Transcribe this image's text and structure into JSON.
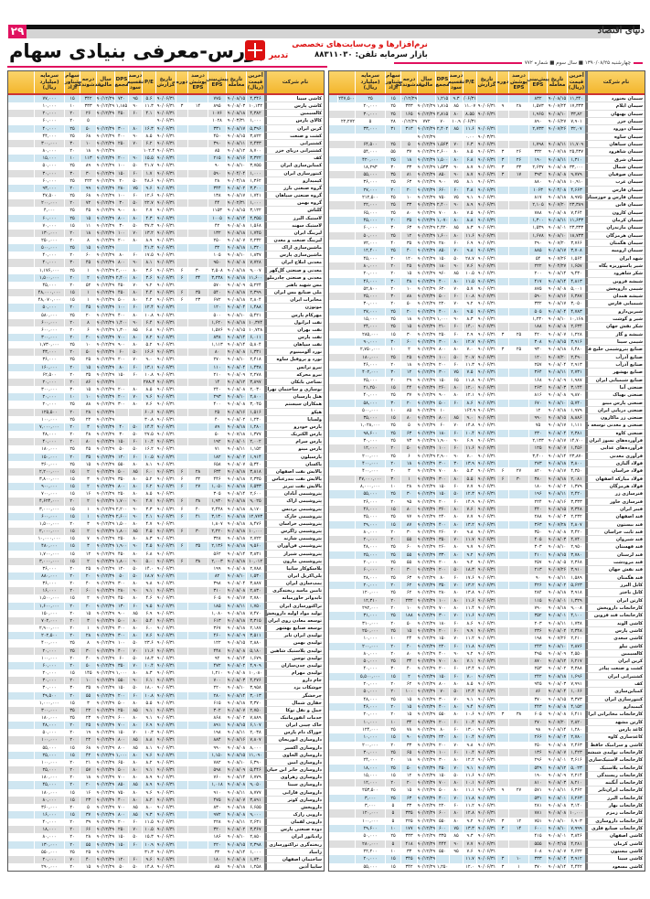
{
  "header": {
    "page_number": "۲۹",
    "logo": "دنیای اقتصاد",
    "title": "بورس-معرفی بنیادی سهام",
    "ad_line1": "نرم‌افزارها و وب‌سایت‌های تخصصی",
    "ad_line2": "بازار سرمایه  تلفن: ۸۸۳۱۱۰۳۰",
    "ad_brand": "تدبیر",
    "dateline": "چهارشنبه ۱۳۹۰/۰۸/۲۵ ■ سال سوم ■ شماره ۷۷۲"
  },
  "colors": {
    "accent": "#e0115f",
    "header_bg": "#f5c33b",
    "row_blue": "#cfe6f1",
    "row_gray": "#dedede"
  },
  "columns": [
    "نام شرکت",
    "آخرین قیمت (ریال)",
    "تاریخ معامله",
    "پیش‌بینی EPS",
    "درصد پوشش EPS",
    "دوره",
    "تاریخ گزارش",
    "P/E",
    "درصد تقسیم سود",
    "DPS مجمع",
    "سال مالی",
    "درجه نقدشوندگی",
    "سهام شناور آزاد",
    "سرمایه (میلیارد ریال)"
  ],
  "right_rows": [
    "سیمان بجنورد|۱۱,۳۴۰|۹۰/۰۸/۱۵|۸۳۲||||۹۰/۰۶/۳۱|۹.۳|۱,۲۱۵||۹۰/۱۲/۲۹|۱۵|۲۵|۲۴۷,۵۰۰",
    "سیمان ایلام|۱۷,۳۳۳|۹۰/۰۷/۲۴|۱,۵۷۳|۲۸|۹|۹۰/۰۶/۳۱|۱۱.۰۷|۸۵|۱,۸۱۵|۹۰/۱۲/۲۹|۳۳۳|۲۵|۲۰,۰۰۰",
    "سیمان بهبهان|۳۳,۸۲|۹۰/۰۸/۱۰|۱,۹۶۵|||۹۰/۰۶/۳۱|۸.۵۵|۸۰|۲,۸۱۵|۹۰/۱۲/۲۹|۱۶۵|۲۵|۳۰,۰۰۰",
    "سیمان خزر|۷,۹۰۱|۹۰/۰۶/۲۷|۸۹۰||||۹۰/۰۶/۳۱|۱۰.۹|۷۰|۷۷۲|۹۰/۱۲/۲۹|۲۸|۵|۲۲,۲۷۲",
    "سیمان دورود|۳۲,۰۷|۹۰/۰۷/۲۶|۲,۷۳۳|||۹۰/۰۶/۳۱|۱۱.۶|۸۵|۲,۴۰۲|۹۰/۱۲/۲۹|۳۱۳|۳۱|۳۳,۰۰۰",
    "سیمان ساوه||||||۹۰/۰۳/۳۱|۰.۰۰|||۹۰/۱۲/۲۹|||",
    "سیمان سپاهان|۱۱,۷۰۹|۹۰/۰۸/۱۱|۱,۷۹۸|||۹۰/۰۶/۳۱|۶.۳|۷۰|۱,۵۶۳|۹۰/۱۲/۲۹|۵|۲۵|۶۴,۵۰۰",
    "سیمان شاهرود|۲۵,۴۳۷|۹۰/۰۷/۱۸|۳۳۲|۲۶|۳|۹۰/۰۶/۳۱|۸.۵|۸۰|۲,۶۰۰|۹۰/۱۲/۲۹|۳۷|۵۵|۵۴,۰۰۰",
    "سیمان شرق|۱,۳۱۰|۹۰/۰۸/۱۱|۱۹۰|۲۶|۳|۹۰/۰۶/۳۱|۶.۸|۸۰|۱,۵۰۰|۹۰/۱۲/۲۹|۱۸|۲۵|۴۲۰,۰۰۰",
    "سیمان شمال|۳۳,۰۰۰|۹۰/۰۸/۰۸|۲,۶۳۷|۳۳|۳|۹۰/۰۶/۳۱|۸.۷|۹۰|۱,۵۳۳|۹۰/۱۲/۲۹|۳۳|۳۰|۱۸,۲۹۳",
    "سیمان صوفیان|۹,۷۷۹|۹۰/۰۸/۰۸|۳۹۳|۱۷|۳|۹۰/۰۶/۳۱|۸.۷|۹۰|۸۵۰|۹۰/۱۲/۲۹|۸۱|۳۵|۵۵,۰۰۰",
    "سیمان غرب|۱۰,۹۱۰|۹۰/۰۸/۱۸|۸۸۰|||۹۰/۰۶/۳۱|۸.۱|۷۵|۹۰۰|۹۰/۱۲/۲۹|۶۳|۲۵|۳۶,۰۰۰",
    "سیمان فارس|۴,۶۶۳|۹۰/۰۴/۰۸|۱۰۶۳|||۹۰/۰۶/۳۱|۴.۸|۶۰|۶۶۰|۹۰/۱۲/۲۹|۲۰|۲۰|۲۷,۰۰۰",
    "سیمان فارس و خوزستان|۸,۹۷۵|۹۰/۰۸/۱۸|۸۱۷|||۹۰/۰۶/۳۱|۹.۱|۷۵|۷۵۰|۹۰/۱۲/۲۹|۱۰|۴۵|۲۱۲,۵۰۰",
    "سیمان قاین|۲۳,۳۸۹|۹۰/۰۷/۲۰|۲,۱۰۵|||۹۰/۰۶/۳۱|۸.۹|۹۰|۲,۴۰۰|۹۰/۱۲/۲۹|۳۳|۲۵|۲۲,۰۰۰",
    "سیمان کارون|۷,۴۶۴|۹۰/۰۸/۰۸|۷۸۸|||۹۰/۰۶/۳۱|۷.۵|۸۰|۷۰۰|۹۰/۱۲/۲۹|۸۰|۲۵|۶۵,۰۰۰",
    "سیمان کرمان|۱۱,۶۳۳|۹۰/۰۸/۱۱|۱,۳۰۰|||۹۰/۰۶/۳۱|۸.۸|۸۰|۱,۰۷۰|۹۰/۱۲/۲۹|۳۵|۲۰|۴۵,۰۰۰",
    "سیمان مازندران|۲۳,۳۳۳|۹۰/۰۸/۰۱|۱,۵۳۹|||۹۰/۰۶/۳۱|۸.۳|۸۵|۲,۴۲۰|۹۰/۱۲/۲۹|۶۳|۳۰|۶۰,۰۰۰",
    "سیمان هرمزگان|۱۸,۷۳۳|۹۰/۰۸/۱۰|۱,۶۷۸|||۹۰/۰۶/۳۱|۱۱.۶|۸۰|۱,۶۰۰|۹۰/۱۲/۲۹|۱۲|۲۵|۵۰,۰۰۰",
    "سیمان هگمتان|۳,۷۶۶|۹۰/۰۷/۲۰|۲۹۰|||۹۰/۰۶/۳۱|۶.۹|۶۰|۲۸۰|۹۰/۱۲/۲۹|۳۵|۴۰|۷۲,۰۰۰",
    "سیمان ارومیه|۳,۷۰۸|۹۰/۰۸/۱۷|۸۸۵|||۹۰/۰۶/۳۱|۹.۸|۷۰|۸۵۰|۹۰/۱۲/۲۹|۴۰|۲۵|۱۲,۴۰۰",
    "شهد ایران|۱,۵۶۴|۹۰/۰۷/۲۶|۵۴|||۹۰/۰۶/۳۱|۲۸.۷|۵۰|۱۵۰|۹۰/۱۲/۲۹|۱۲۰|۲۰|۴۵,۰۰۰",
    "شیر پاستوریزه پگاه|۱,۶۵۷|۹۰/۰۴/۲۷|۲۲۲|||۹۰/۰۶/۳۱|۷.۶|۹۰|۱۸۰|۹۰/۱۲/۲۹|۲۵|۲۰|۸۰,۰۰۰",
    "شکر شاهرود|۹,۴۳۰|۹۰/۰۸/۱۴|۲۰۰|||۹۰/۰۶/۳۱|۱۰.۵|۸۵|۹۶۰|۹۰/۱۲/۲۹|۱۵|۲۰|۲۰,۰۰۰",
    "شیشه قزوین|۴,۸۱۳|۹۰/۰۸/۱۴|۴۱۷|||۹۰/۰۶/۳۱|۱۱.۵|۸۰|۴۰۰|۹۰/۱۲/۲۹|۴۸|۳۰|۴۶,۰۰۰",
    "شیمی داروپخش|۵,۰۰۱|۹۰/۰۸/۰۸|۸۷۵|||۹۰/۰۶/۳۱|۵.۷|۷۰|۶۲۰|۹۰/۱۲/۲۹|۱۰|۲۰|۵۲,۸۰۰",
    "شیشه همدان|۶,۳۸۷|۹۰/۰۸/۱۶|۵۹۰|||۹۰/۰۶/۳۱|۱۰.۸|۶۰|۵۰۰|۹۰/۱۲/۲۹|۸۸|۳۰|۲۵,۰۰۰",
    "شیمیایی فارس|۳,۰۵۰|۹۰/۰۸/۱۷|۳۳۲|||۹۰/۰۶/۳۱|۹.۲|۷۰|۲۲۰|۹۰/۱۲/۲۹|۵۰|۲۰|۳۰,۰۰۰",
    "شیرین‌دارو|۴,۷۸۳|۹۰/۰۸/۰۴|۵۰۵|||۹۰/۰۶/۳۱|۹.۵|۸۰|۴۰۰|۹۰/۱۲/۲۹|۲۰|۲۵|۲۷,۰۰۰",
    "شیر و گوشت|۱۰,۱۶۸|۹۰/۰۸/۱۰|۱,۲۳۰|||۹۰/۰۶/۳۱|۸.۳|۹۰|۱,۰۰۰|۹۰/۱۲/۲۹|۱۸|۲۵|۱۵,۰۰۰",
    "شکر نقش جهان|۲,۶۳۴|۹۰/۰۸/۰۸|۱۸۸|||۹۰/۰۶/۳۱|۱۴.۰|۶۰|۲۱۰|۹۰/۱۲/۲۹|۱۵|۲۵|۲۴,۰۰۰",
    "شیشه و گاز|۱,۲۲۸|۹۰/۰۸/۰۷|۴۲۰|۲۵|۳|۹۰/۰۶/۳۱|۲.۹|۶۰|۲۵۰|۹۰/۱۲/۲۹|۳۰|۱۵|۲۸۵,۰۰۰",
    "شیمی سینا|۳,۹۱۶|۹۰/۰۸/۱۵|۳۰۸|||۹۰/۰۶/۳۱|۱۲.۷|۸۰|۳۰۰|۹۰/۱۲/۲۹|۶۰|۳۰|۹۰,۰۰۰",
    "صنایع پتروشیمی خلیج فارس|۶,۴۸۰|۹۰/۰۸/۱۸|۹۳۰|۲۵|۳|۹۰/۰۶/۳۱|۷.۰|۸۰|۸۰۰|۹۰/۱۲/۲۹|۲|۱۰|۲,۷۵۰,۰۰۰",
    "صنایع آذرآب|۲,۴۹۰|۹۰/۰۷/۲۰|۱۲۰|||۹۰/۰۶/۳۱|۲۰.۷|۵۰|۱۰۰|۹۰/۱۲/۲۹|۲۵|۲۵|۱۸۰,۰۰۰",
    "صنایع آذرآب|۲,۹۱۳|۹۰/۰۸/۰۴|۲۵۷|||۹۰/۰۶/۳۱|۱۱.۳|۶۰|۲۰۰|۹۰/۱۲/۲۹|۱۸|۲۰|۴۶,۰۰۰",
    "صنایع بهشهر|۲,۷۳۱|۹۰/۰۸/۱۱|۳۶۴|||۹۰/۰۶/۳۱|۷.۵|۷۵|۳۰۰|۹۰/۱۲/۲۹|۱۲|۳۰|۴۰۲,۰۰۰",
    "صنایع شیمیایی ایران|۱,۹۸۷|۹۰/۰۸/۰۹|۱۶۸|||۹۰/۰۶/۳۱|۱۱.۸|۶۵|۱۵۰|۹۰/۱۲/۲۹|۲۹|۲۰|۲۵,۰۰۰",
    "صنعتی آما|۳,۱۴۴|۹۰/۰۸/۰۳|۲۶۳|||۹۰/۰۶/۳۱|۱۲.۰|۸۰|۲۶۰|۹۰/۱۲/۲۹|۴۴|۱۵|۲۱,۲۵۰",
    "صنعتی بهپاک|۹,۸۷۰|۹۰/۰۸/۰۸|۸۱۶|||۹۰/۰۶/۳۱|۱۲.۱|۸۰|۹۰۰|۹۰/۱۲/۲۹|۳۷|۲۵|۴۰,۰۰۰",
    "صنعتی پارس مینو|۵,۷۴۰|۹۰/۰۸/۱۰|۶۷۰|||۹۰/۰۶/۳۱|۸.۶|۶۰|۵۰۰|۹۰/۱۲/۲۹|۲۰|۳۰|۵۸,۰۰۰",
    "صنعتی دریایی ایران|۱,۹۷۹|۹۰/۰۷/۱۸|۱۲|||۹۰/۰۶/۳۱|۱۶۴.۹||۱۰|۹۰/۱۲/۲۹|۸۵|۱۰|۵۰۰,۰۰۰",
    "صنعتی زر ماکارون|۸,۸۸۶|۹۰/۰۸/۱۵|۹۹۰|||۹۰/۰۶/۳۱|۹.۰|۸۵|۸۰۰|۹۰/۱۲/۲۹|۸۰|۱۵|۳۵,۰۰۰",
    "صنعتی و معدنی توسعه ملی|۱,۱۱۱|۹۰/۰۸/۱۷|۷۵|||۹۰/۰۶/۳۱|۱۴.۸|۷۰|۶۰|۹۰/۱۲/۲۹|۵|۲۵|۱,۰۲۸,۰۰۰",
    "صنعتی کاوه|۲,۳۸۱|۹۰/۰۸/۰۴|۲۳۰|||۹۰/۰۶/۳۱|۱۰.۴|۶۰|۱۸۰|۹۰/۱۲/۲۹|۶۳|۲۵|۹۸,۶۰۰",
    "فرآورده‌های نسوز ایران|۱۴,۷۰۰|۹۰/۰۸/۱۷|۲,۱۳۳|||۹۰/۰۶/۳۱|۶.۹|۹۰|۱,۹۰۰|۹۰/۱۲/۲۹|۷۳|۲۵|۳۰,۰۰۰",
    "فرآورده‌های غذایی|۱,۴۵۶|۹۰/۰۸/۰۷|۱۲۵|||۹۰/۰۶/۳۱|۱۱.۶|۶۰|۱۰۰|۹۰/۱۲/۲۹|۵۰|۲۰|۱۲,۰۰۰",
    "فرآوری معدنی|۲۳,۸۷۰|۹۰/۰۸/۱۴|۳,۴۰۰|||۹۰/۰۶/۳۱|۷.۰|۹۰|۲,۹۰۰|۹۰/۱۲/۲۹|۶|۲۵|۲۰۰,۰۰۰",
    "فولاد آلیاژی|۳,۸۰۰|۹۰/۰۸/۱۸|۲۷۳|||۹۰/۰۶/۳۱|۱۳.۹|۳۰|۳۰۰|۹۰/۱۲/۲۹|۱۸|۲۰|۴۰۰,۰۰۰",
    "فولاد خراسان|۴,۳۵۰|۹۰/۰۸/۱۷|۸۲۰|۲۷|۶|۹۰/۰۶/۳۱|۵.۳|۸۰|۷۰۰|۹۰/۱۲/۲۹|۳|۲۰|۴۰۰,۰۰۰",
    "فولاد مبارکه اصفهان|۲,۰۸۱|۹۰/۰۸/۱۸|۳۸۰|۳۰|۶|۹۰/۰۶/۳۱|۵.۵|۸۰|۳۰۰|۹۰/۱۲/۲۹|۱|۳۰|۴۷,۰۰۰,۰۰۰",
    "فولاد هرمزگان|۱,۳۷۹|۹۰/۰۸/۰۲|۱۸۰|||۹۰/۰۶/۳۱|۷.۷|۶۰|۱۵۰|۹۰/۱۲/۲۹|۲۸|۱۰|۸,۰۰۰,۰۰۰",
    "فنرسازی زر|۲,۴۲۰|۹۰/۰۸/۱۱|۱۹۶|||۹۰/۰۶/۳۱|۱۲.۳|۵۰|۱۵۰|۹۰/۱۲/۲۹|۳۰|۲۵|۵۵,۰۰۰",
    "فنرسازی خاور|۳,۳۳۳|۹۰/۰۸/۱۶|۲۲۴|||۹۰/۰۶/۳۱|۱۴.۹|۶۰|۲۰۰|۹۰/۱۲/۲۹|۹۵|۲۰|۲۶,۰۰۰",
    "فیبر ایران|۳,۳۴۸|۹۰/۰۸/۱۵|۴۴۰|||۹۰/۰۶/۳۱|۷.۶|۸۰|۳۶۰|۹۰/۱۲/۲۹|۸۰|۱۵|۴۶,۰۰۰",
    "قند اصفهان|۲,۲۳۲|۹۰/۰۸/۰۳|۲۸۸|||۹۰/۰۶/۳۱|۷.۷|۸۰|۲۴۰|۹۰/۱۲/۲۹|۷۷|۲۵|۲۵,۰۰۰",
    "قند بیستون|۴,۸۰۷|۹۰/۰۷/۲۸|۳۶۳|||۹۰/۰۶/۳۱|۱۳.۲|۸۰|۴۰۰|۹۰/۱۲/۲۹|۸۷|۱۵|۲۹,۰۰۰",
    "قند ثابت خراسان|۳,۴۲۰|۹۰/۰۸/۰۸|۳۵۰|||۹۰/۰۶/۳۱|۹.۸|۷۰|۲۶۰|۹۰/۱۲/۲۹|۳۰|۲۰|۸۰,۰۰۰",
    "قند شیروان|۴,۷۴۰|۹۰/۰۸/۰۳|۴۰۵|||۹۰/۰۶/۳۱|۱۱.۷|۷۰|۳۵۰|۹۰/۱۲/۲۹|۵۵|۲۰|۲۰,۰۰۰",
    "قند قهستان|۲,۹۵۰|۹۰/۰۸/۱۰|۳۰۳|||۹۰/۰۶/۳۱|۹.۷|۸۰|۲۶۰|۹۰/۱۲/۲۹|۶۰|۲۵|۴۸,۰۰۰",
    "قند لرستان|۳,۷۸۰|۹۰/۰۸/۱۵|۴۱۰|||۹۰/۰۶/۳۱|۹.۲|۸۰|۳۳۰|۹۰/۱۲/۲۹|۵۵|۲۵|۲۵,۰۰۰",
    "قند مرودشت|۲,۳۶۸|۹۰/۰۸/۰۵|۲۵۷|||۹۰/۰۶/۳۱|۹.۲|۸۰|۲۰۰|۹۰/۱۲/۲۹|۵۵|۲۵|۲۰,۰۰۰",
    "قند نقش جهان|۳,۹۱۰|۹۰/۰۷/۲۶|۲۱۳|||۹۰/۰۶/۳۱|۱۸.۳|۵۰|۲۰۰|۹۰/۱۲/۲۹|۳۰|۲۰|۶۰,۰۰۰",
    "قند هگمتان|۱,۵۸۹|۹۰/۰۸/۱۱|۹۰|||۹۰/۰۶/۳۱|۱۷.۶|۶۰|۸۰|۹۰/۱۲/۲۹|۶۳|۲۵|۲۸,۰۰۰",
    "کابل البرز|۵,۶۲۳|۹۰/۰۸/۰۲|۴۲۶|||۹۰/۰۶/۳۱|۱۳.۲|۷۰|۳۵۰|۹۰/۱۲/۲۹|۶۲|۲۰|۲۰,۰۰۰",
    "کابل باختر|۳,۹۱۸|۹۰/۰۸/۱۸|۲۸۴|||۹۰/۰۶/۳۱|۱۳.۸|۸۰|۲۸۰|۹۰/۱۲/۲۹|۶۲|۲۵|۱۲۰,۰۰۰",
    "کارتن ایران|۱,۳۲۹|۹۰/۰۸/۰۱|۱۱۵|||۹۰/۰۶/۳۱|۱۱.۶|۸۰|۱۰۰|۹۰/۱۲/۲۹|۲۳۲|۲۰|۱۲,۳۱۰",
    "کارخانجات داروپخش|۹,۰۰۸|۹۰/۰۸/۱۸|۷۹۰|||۹۰/۰۶/۳۱|۱۱.۴|۸۰|۷۰۰|۹۰/۱۲/۲۹|۱۰|۲۰|۲۹۲,۰۰۰",
    "کارخانجات قند قزوین|۴,۱۰۰|۹۰/۰۸/۰۱|۳۵۲|||۹۰/۰۶/۳۱|۱۱.۶|۷۰|۳۰۰|۹۰/۱۲/۲۹|۱۸۸|۲۵|۳۱,۰۰۰",
    "کاشی الوند|۱,۷۳۸|۹۰/۰۸/۱۱|۲۰۳|||۹۰/۰۶/۳۱|۸.۶|۶۰|۱۸۰|۹۰/۱۲/۲۹|۵۰|۲۰|۳۱۰,۰۰۰",
    "کاشی پارس|۲,۳۴۸|۹۰/۰۸/۰۲|۲۳۶|||۹۰/۰۶/۳۱|۹.۹|۶۰|۲۰۰|۹۰/۱۲/۲۹|۱۵|۲۵|۲۵۰,۰۰۰",
    "کاشی سعدی|۲,۲۱۰|۹۰/۰۷/۲۶|۱۹۸|||۹۰/۰۶/۳۱|۱۱.۲|۷۰|۱۵۰|۹۰/۱۲/۲۹|۲۴|۱۰|۱۰,۰۰۰",
    "کاشی نیلو|۲,۸۷۶|۹۰/۰۸/۱۰|۲۴۳|||۹۰/۰۶/۳۱|۱۱.۸|۶۰|۲۲۰|۹۰/۱۲/۲۹|۴۰|۲۰|۲۰۰,۰۰۰",
    "کالسیمین|۴,۵۵۰|۹۰/۰۸/۰۹|۴۹۵|||۹۰/۰۶/۳۱|۹.۲|۹۰|۴۰۰|۹۰/۱۲/۲۹|۸۰|۲۰|۸۰,۰۰۰",
    "کربن ایران|۶,۲۱۷|۹۰/۰۸/۱۲|۸۷۰|||۹۰/۰۶/۳۱|۷.۱|۸۰|۷۰۰|۹۰/۱۲/۲۹|۳۴|۲۵|۵۰,۰۰۰",
    "کشت و صنعت پیاذر|۳,۳۸۸|۹۰/۰۸/۰۲|۲۵۳|||۹۰/۰۶/۳۱|۱۳.۴|۶۰|۲۰۰|۹۰/۱۲/۲۹|۴۰|۳۰|۴۰,۰۰۰",
    "کشتیرانی ایران|۱,۶۹۶|۹۰/۰۸/۱۸|۲۴۲|||۹۰/۰۶/۳۱|۷.۰|۶۰|۱۵۰|۹۰/۱۲/۲۹|۲|۱۵|۵,۵۰۰,۰۰۰",
    "کف|۷,۹۹۱|۹۰/۰۸/۰۳|۹۴۵|||۹۰/۰۶/۳۱|۸.۵|۸۰|۸۰۰|۹۰/۱۲/۲۹|۶۲|۲۰|۲۰,۰۰۰",
    "کمباین‌سازی|۱,۰۶۶|۹۰/۰۸/۰۴|۸۶|||۹۰/۰۶/۳۱|۱۲.۴|۵۰|۷۰|۹۰/۱۲/۲۹|۱۰۰|۲۰|۵۰,۰۰۰",
    "کنتورسازی ایران|۳,۳۷۳|۹۰/۰۸/۱۵|۳۷۰|||۹۰/۰۶/۳۱|۹.۱|۷۰|۳۰۰|۹۰/۱۲/۲۹|۱۵|۲۵|۴۸,۰۰۰",
    "کیمیدارو|۴,۱۵۲|۹۰/۰۸/۰۸|۴۴۳|||۹۰/۰۶/۳۱|۹.۴|۸۰|۴۰۰|۹۰/۱۲/۲۹|۱۵|۲۰|۴۶,۰۰۰",
    "کارخانجات مخابراتی ایران|۶,۴۱۱|۹۰/۰۸/۰۸|۶۰۵|۳۸|۳|۹۰/۰۶/۳۱|۱۰.۶|۸۰|۵۵۰|۹۰/۱۲/۲۹|۱۵|۲۰|۲۰,۰۰۰",
    "کارتن مشهد|۲,۸۲۰|۹۰/۰۷/۲۰|۲۷۰|||۹۰/۰۶/۳۱|۱۰.۴|۶۰|۲۰۰|۹۰/۱۲/۲۹|۳۴|۱۰|۱۰,۰۰۰",
    "کاغذ پارس|۱,۲۸۰|۹۰/۰۸/۱۴|۹۸|||۹۰/۰۶/۳۱|۱۳.۰|۶۰|۸۰|۹۰/۱۲/۲۹|۷۸|۲۵|۱۲۴,۰۰۰",
    "کاغذسازی کاوه|۲,۷۸۰|۹۰/۰۸/۰۲|۲۶۶|||۹۰/۰۶/۳۱|۱۰.۴|۸۰|۲۲۰|۹۰/۱۲/۲۹|۹۰|۱۵|۱۰,۰۰۰",
    "کاشی و سرامیک حافظ|۲,۴۶۳|۹۰/۰۸/۰۸|۲۵۰|||۹۰/۰۶/۳۱|۹.۸|۷۰|۲۰۰|۹۰/۱۲/۲۹|۳۳|۲۰|۲۰۰,۰۰۰",
    "کارخانجات تولیدی شیشه|۱,۴۲۳|۹۰/۰۸/۰۷|۱۳۶|||۹۰/۰۶/۳۱|۱۰.۴|۶۰|۱۰۰|۹۰/۱۲/۲۹|۶۵|۲۵|۳۰,۰۰۰",
    "کارخانجات لاستیک‌سازی|۳,۶۱۶|۹۰/۰۸/۰۱|۲۹۶|||۹۰/۰۶/۳۱|۱۲.۲|۸۰|۳۰۰|۹۰/۱۲/۲۹|۱۸|۲۰|۲۴,۰۰۰",
    "کارخانجات پلاستیک|۵,۰۲۳|۹۰/۰۸/۱۲|۵۴۹|||۹۰/۰۶/۳۱|۹.۱|۷۰|۴۵۰|۹۰/۱۲/۲۹|۵۰|۲۵|۱۸,۰۰۰",
    "کارخانجات ریسندگی|۲,۲۱۴|۹۰/۰۸/۰۹|۱۹۰|||۹۰/۰۶/۳۱|۱۱.۶|۵۰|۱۵۰|۹۰/۱۲/۲۹|۱۲|۱۵|۱۵,۰۰۰",
    "کارخانجات آبگینه|۸,۲۱۰|۹۰/۰۸/۰۳|۸۱۰|||۹۰/۰۶/۳۱|۱۰.۱|۸۰|۷۰۰|۹۰/۱۲/۲۹|۲۰|۲۰|۱۲,۰۰۰",
    "کارخانجات ایران‌تایر|۶,۳۶۲|۹۰/۰۸/۱۱|۵۷۱|۲۷|۹|۹۰/۰۶/۳۱|۱۱.۱|۸۰|۵۰۰|۹۰/۱۲/۲۹|۱۵|۲۵|۲۵۳,۵۰۰",
    "کارخانجات البرز|۶,۲۶۳|۹۰/۰۸/۰۱|۵۳۱|||۹۰/۰۶/۳۱|۱۱.۸|۷۰|۴۰۰|۹۰/۱۲/۲۹|۶۳|۲۵|۳,۰۰۰",
    "کارخانجات بهار|۳,۱۴۰|۹۰/۰۸/۰۸|۲۸۱|||۹۰/۰۶/۳۱|۱۱.۲|۶۰|۲۲۰|۹۰/۱۲/۲۹|۳۳|۵|۳,۰۰۰",
    "کارخانجات زمزم|۱۰,۰۰۰|۹۰/۰۸/۰۸|۷۸۱|||۹۰/۰۶/۳۱|۱۲.۸|۸۰|۶۰۰|۹۰/۱۲/۲۹|۳۳۵|۵|۱۲۰,۰۰۰",
    "کارخانجات داروسازی|۶,۹۰۳|۹۰/۰۸/۱۰|۷۵۱|۱۲|۳|۹۰/۰۶/۳۱|۹.۲|۸۰|۵۵۰|۹۰/۱۲/۲۹|۲۲۵|۵|۱۰۰,۰۰۰",
    "کارخانجات صنایع فلزی|۷,۹۹۹|۹۰/۰۸/۱۰|۶۰۰|۱۴|۳|۹۰/۰۶/۳۱|۱۳.۳|۷۵|۶۰۰|۹۰/۱۲/۲۹|۱۷۷|۱۰|۲۹,۶۰۰",
    "کاشی اصفهان|۳,۸۴۶|۹۰/۰۸/۰۱|۴۱۵|||۹۰/۰۶/۳۱|۹.۳|۸۵|۳۳۵|۹۰/۱۲/۲۹|۳۳۳|۲۵|۵۰,۰۰۰",
    "کاشی کرمان|۴,۲۸۱|۹۰/۰۳/۱۵|۵۵۵|||۹۰/۰۶/۳۱|۷.۷|۹۰|۴۴۴|۹۰/۱۲/۲۹|۴۱۸|۵|۲۸۰,۰۰۰",
    "کاشی بیستون|۴,۶۲۲|۹۰/۰۸/۰۷|۶۰۸|||۹۰/۰۶/۳۱|۷.۶|۹۵|۵۵۰|۹۰/۱۲/۲۹|۳۳|۱۰|۲۲,۲۰۰",
    "کاشی سینا|۳,۹۱۲|۹۰/۰۸/۰۴|۳۳۳|۱۰|۳|۹۰/۰۶/۳۱|۱۱.۷|||۹۰/۱۲/۲۹|۳۴۵|۱۵|۲۰,۰۰۰",
    "کاشی مسعود|۴,۴۴۲|۹۰/۰۸/۱۴|۳۷۰|۱|۳|۹۰/۰۶/۳۱|۱۲.۰||۱,۲۵۰|۹۰/۱۲/۲۹|۳۴۲|۱۵|۵۵,۰۰۰"
  ],
  "left_rows": [
    "کاشی سینا|۴,۳۴۶|۹۰/۰۸/۱۵|۷۷۵|||۹۰/۰۶/۳۱|۵.۶|۹۵|۷۲۰|۹۰/۱۲/۲۹|۳۴۲|۱۵|۷۷,۰۰۰",
    "کاشی پارس|۱۰,۱۳۲|۹۰/۰۸/۰۳|۸۹۵|۱۴|۳|۹۰/۰۶/۳۱|۱۱.۳|۹۰|۱,۱۸۵|۹۰/۱۲/۲۹|۳۳۳|۱۰|۱۰,۰۰۰",
    "کالسیمین|۴,۳۸۲|۹۰/۰۸/۱۸|۱۰۷۶|||۹۰/۰۶/۳۱|۴.۱|۶۰|۴۵۰|۹۰/۱۲/۲۹|۲۶|۲۰|۲۰,۰۰۰",
    "کالای پارس|۱,۰۰۰|۹۰/۰۳/۳۱|۱۰۲۸|||۹۰/۰۶/۳۱|||||۵|۲۰|۶۰,۰۰۰",
    "کربن ایران|۵,۳۹۶|۹۰/۰۸/۱۷|۳۳۱|||۹۰/۰۶/۳۱|۱۶.۳|۸۰|۳۰۰|۹۰/۱۲/۲۹|۵۰|۲۵|۴۰,۰۰۰",
    "کشت و صنعت|۳,۸۲۲|۹۰/۰۸/۱۵|۴۵۰|||۹۰/۰۶/۳۱|۸.۵|۹۰|۴۰۰|۹۰/۱۲/۲۹|۶۸|۲۵|۴۴,۰۰۰",
    "کشتیرانی|۲,۴۳۳|۹۰/۰۸/۱۱|۳۹۰|||۹۰/۰۶/۳۱|۶.۲|۷۰|۲۵۰|۹۰/۱۲/۲۹|۱۰|۳۰|۳۰۰,۰۰۰",
    "کشتیرانی دریای خزر|۸,۷۰۰|۹۰/۰۸/۱۲|۸۵|||۹۰/۰۶/۳۱|۱۰۲.۴|||۹۰/۱۲/۲۹|۱۸|۲۰|۸۰,۰۰۰",
    "کف|۳,۳۲۲|۹۰/۰۸/۱۶|۲۱۵|||۹۰/۰۶/۳۱|۱۵.۵|۹۰|۲۰۰|۹۰/۱۲/۲۹|۱۱۳|۱۰|۱۵,۰۰۰",
    "کمباین‌سازی ایران|۳,۷۵۵|۹۰/۰۸/۱۰|۹۰|||۹۰/۰۶/۳۱|۴۱.۷|۵۰|۱۰۰|۹۰/۱۲/۲۹|۸۹|۲۵|۵۰,۰۰۰",
    "کنتورسازی ایران|۱,۰۰۰|۹۰/۰۴/۰۴|۵۹۰|||۹۰/۰۶/۳۱|۱.۷|۶۰|۱۵۰|۹۰/۱۲/۲۹|۳۰|۳۰|۳۰,۰۰۰",
    "کیمیدارو|۱,۳۶۲|۹۰/۰۳/۱۸|۲۸|||۹۰/۰۶/۳۱|۴۸.۶|۵۰|۲۰|۹۰/۱۲/۲۹|۲۲۲|۲۵|۶۰,۰۰۰",
    "گروه صنعتی بارز|۳,۳۰۰|۹۰/۰۸/۰۲|۳۴۴|||۹۰/۰۶/۳۱|۹.۶|۷۵|۲۸۰|۹۰/۱۲/۲۹|۹۹|۲۰|۹۳,۰۰۰",
    "گروه صنعتی سپاهان|۱,۷۴۱|۹۰/۰۸/۱۷|۱۳۸|||۹۰/۰۶/۳۱|۱۲.۶|۶۰|۱۰۰|۹۰/۱۲/۲۹|۶۸|۲۵|۴۷,۵۰۰",
    "گروه بهمن|۱,۰۰۰|۹۰/۰۲/۳۱|۴۴|||۹۰/۰۶/۳۱|۲۲.۷|۵۰|۳۰|۹۰/۱۲/۲۹|۷۲|۲۰|۲۰۰,۰۰۰",
    "گلتاش|۳,۱۲۲|۹۰/۰۸/۱۵|۱۱۵۳|||۹۰/۰۶/۳۱|۲.۷|۸۰|۹۰۰|۹۰/۱۲/۲۹|۴۵|۲۵|۴,۰۰۰",
    "لاستیک البرز|۴,۳۵۵|۹۰/۰۸/۱۴|۱۰۰۵|||۹۰/۰۶/۳۱|۴.۳|۸۰|۸۰۰|۹۰/۱۲/۲۹|۱۵|۲۵|۶۰,۰۰۰",
    "لاستیک سهند|۱,۵۶۸|۹۰/۰۸/۰۸|۴۲|||۹۰/۰۶/۳۱|۳۷.۳|۵۰|۳۰|۹۰/۱۲/۲۹|۱۱|۱۵|۷۰,۰۰۰",
    "لیزینگ ایران|۱,۷۴۵|۹۰/۰۸/۱۸|۱۳۲|||۹۰/۰۶/۳۱|۱۳.۲|۷۰|۱۰۰|۹۰/۱۲/۲۹|۱۸|۲۰|۱۳۰,۰۰۰",
    "لیزینگ صنعت و معدن|۲,۲۳۲|۹۰/۰۸/۰۷|۲۵۰|||۹۰/۰۶/۳۱|۸.۹|۸۰|۲۰۰|۹۰/۱۲/۲۹|۸|۲۰|۲۵۰,۰۰۰",
    "ماشین‌سازی اراک|۱,۳۲۰|۹۰/۰۸/۱۸|۳۲|||۹۰/۰۶/۳۱|۴۱.۳|||۹۰/۱۲/۲۹|۱۵|۲۵|۵۰۰,۰۰۰",
    "ماشین‌سازی پارس|۱,۸۳۷|۹۰/۰۸/۱۰|۱۰۵|||۹۰/۰۶/۳۱|۱۷.۵|۶۰|۸۰|۹۰/۱۲/۲۹|۶۰|۲۰|۴۰,۰۰۰",
    "معدنی املاح ایران|۷,۷۲۸|۹۰/۰۸/۰۸|۹۵۰|||۹۰/۰۶/۳۱|۸.۱|۹۰|۸۰۰|۹۰/۱۲/۲۹|۴۵|۳۰|۴۰,۰۰۰",
    "معدنی و صنعتی گل‌گهر|۹,۰۰۷|۹۰/۰۸/۱۸|۲,۵۰۸|۳۰|۶|۹۰/۰۶/۳۱|۳.۶|۸۰|۲,۰۰۰|۹۰/۱۲/۲۹|۱|۲۵|۱,۱۷۶,۰۰۰",
    "معدنی و صنعتی چادرملو|۱۱,۶۰۰|۹۰/۰۸/۱۸|۳,۲۳۸|۳۴|۶|۹۰/۰۶/۳۱|۳.۶|۸۰|۲,۴۰۰|۹۰/۱۲/۲۹|۲|۲۰|۱,۵۰۰,۰۰۰",
    "مس شهید باهنر|۵,۲۲۴|۹۰/۰۸/۰۹|۵۷۰|||۹۰/۰۶/۳۱|۹.۲|۷۰|۴۵۰|۹۰/۱۲/۲۹|۵۲|۲۰|۴۵,۰۰۰",
    "ملی صنایع مس ایران|۲,۳۹۹|۹۰/۰۸/۱۸|۵۴۰|۳۵|۶|۹۰/۰۶/۳۱|۴.۴|۸۰|۴۵۰|۹۰/۱۲/۲۹|۱|۱۵|۴۸,۰۰۰,۰۰۰",
    "مخابرات ایران|۲,۸۰۴|۹۰/۰۸/۱۸|۶۷۲|۲۳|۶|۹۰/۰۶/۳۱|۴.۲|۸۰|۵۰۰|۹۰/۱۲/۲۹|۱|۱۵|۴۸,۰۷۰,۰۰۰",
    "موتوژن|۱,۴۸۸|۹۰/۰۸/۰۴|۱۲۰|||۹۰/۰۶/۳۱|۱۲.۴|۶۰|۱۰۰|۹۰/۱۲/۲۹|۴۵|۲۰|۵۰,۰۰۰",
    "مهرکام پارس|۵,۴۲۱|۹۰/۰۸/۱۰|۵۰۰|||۹۰/۰۶/۳۱|۱۰.۸|۸۰|۴۰۰|۹۰/۱۲/۲۹|۲۰|۲۵|۵۸۰,۰۰۰",
    "نفت ایرانول|۱۰,۳۷۴|۹۰/۰۸/۱۸|۱,۶۲۰|||۹۰/۰۶/۳۱|۶.۴|۹۰|۱,۴۰۰|۹۰/۱۲/۲۹|۸|۲۰|۶۰۰,۰۰۰",
    "نفت بهران|۱۰,۷۲۸|۹۰/۰۸/۱۵|۱,۵۷۶|||۹۰/۰۶/۳۱|۶.۸|۸۵|۱,۳۰۰|۹۰/۱۲/۲۹|۶|۲۰|۶۰۰,۰۰۰",
    "نفت پارس|۶,۰۱۱|۹۰/۰۸/۱۴|۸۳۸|||۹۰/۰۶/۳۱|۷.۲|۸۰|۷۰۰|۹۰/۱۲/۲۹|۲۰|۲۰|۳۰۰,۰۰۰",
    "نفت سپاهان|۵,۸۰۴|۹۰/۰۸/۱۴|۱,۱۱۳|||۹۰/۰۶/۳۱|۵.۲|۸۰|۹۰۰|۹۰/۱۲/۲۹|۱۰|۲۵|۱,۷۳۰,۰۰۰",
    "نورد آلومینیوم|۱,۳۳۱|۹۰/۰۸/۰۸|۸۰|||۹۰/۰۶/۳۱|۱۶.۶|۵۰|۶۰|۹۰/۱۲/۲۹|۵۰|۲۰|۴۳,۰۰۰",
    "نورد و پروفیل ساوه|۲,۴۱۸|۹۰/۰۸/۱۰|۲۷۰|||۹۰/۰۶/۳۱|۹.۰|۷۰|۲۰۰|۹۰/۱۲/۲۹|۲۵|۲۵|۳۶,۰۰۰",
    "نیرو ترانس|۱,۴۳۸|۹۰/۰۸/۰۴|۱۱۰|||۹۰/۰۶/۳۱|۱۳.۱|۶۰|۸۰|۹۰/۱۲/۲۹|۱۵|۲۰|۱۶۰,۰۰۰",
    "نیرو محرکه|۲,۲۷۸|۹۰/۰۸/۰۹|۲۱۰|||۹۰/۰۶/۳۱|۱۰.۸|۶۰|۱۵۰|۹۰/۱۲/۲۹|۳۵|۲۰|۶۲,۵۰۰",
    "نساجی بابکان|۳,۸۹۷|۹۰/۰۸/۱۲|۱۴|||۹۰/۰۶/۳۱|۲۷۸.۴|||۹۰/۱۲/۲۹|۸۶|۲۰|۲۰,۰۰۰",
    "نوسازی و ساختمان تهران|۲,۰۳۰|۹۰/۰۸/۰۸|۲۴۰|||۹۰/۰۶/۳۱|۸.۵|۸۰|۲۰۰|۹۰/۱۲/۲۹|۱۵|۳۰|۳۰۰,۰۰۰",
    "هتل پارسیان|۲,۸۰۰|۹۰/۰۸/۱۰|۲۹۳|||۹۰/۰۶/۳۱|۹.۶|۷۰|۲۰۰|۹۰/۱۲/۲۹|۱۰|۱۰|۲۰,۰۰۰",
    "همکاران سیستم|۳,۰۴۵|۹۰/۰۸/۰۸|۴۰۰|||۹۰/۰۶/۳۱|۷.۶|۸۰|۳۰۰|۹۰/۱۲/۲۹|۸۸|۲۵|۲۰,۰۰۰",
    "هپکو|۱,۵۱۶|۹۰/۰۸/۱۶|۲۵|||۹۰/۰۶/۳۱|۶۰.۶|||۹۰/۱۲/۲۹|۲۸|۲۰|۱۲۵,۵۰۰",
    "ولساپا|۱,۲۳۰|۹۰/۰۸/۰۲|۴۰|||۹۰/۰۶/۳۱|۳۰.۸|||۹۰/۱۲/۲۹|۲۲|۲۵|۱۰۰,۰۰۰",
    "پارس خودرو|۱,۲۸۰|۹۰/۰۸/۱۸|۸۹|||۹۰/۰۶/۳۱|۱۴.۴|۵۰|۴۰|۹۰/۱۲/۲۹|۳|۲۰|۷,۰۰۰,۰۰۰",
    "پارس الکتریک|۱,۳۷۷|۹۰/۰۷/۱۸|۵۰|||۹۰/۰۶/۳۱|۲۷.۵|۵۰|۳۰|۹۰/۱۲/۲۹|۴۸|۲۰|۴۸,۰۰۰",
    "پارس سرام|۲,۰۰۲|۹۰/۰۸/۰۱|۱۹۲|||۹۰/۰۶/۳۱|۱۰.۴|۶۰|۱۵۰|۹۰/۱۲/۲۹|۸۰|۲۰|۴۰,۰۰۰",
    "پارس مینو|۱,۱۵۲|۹۰/۰۸/۱۱|۷۱|||۹۰/۰۶/۳۱|۱۶.۲|۵۰|۵۰|۹۰/۱۲/۲۹|۴۵|۲۵|۱۸۰,۰۰۰",
    "پارسیلون|۱,۹۱۴|۹۰/۰۸/۰۲|۱۸۲|||۹۰/۰۶/۳۱|۱۰.۵|۶۰|۱۲۰|۹۰/۱۲/۲۹|۳۵|۲۰|۱۵۰,۰۰۰",
    "پاکسان|۵,۳۴۰|۹۰/۰۸/۰۷|۶۵۸|||۹۰/۰۶/۳۱|۸.۱|۸۰|۵۵۰|۹۰/۱۲/۲۹|۱۵|۲۵|۳۶۰,۰۰۰",
    "پالایش نفت اصفهان|۳,۸۱۸|۹۰/۰۸/۱۸|۶۳۴|۲۸|۶|۹۰/۰۶/۳۱|۶.۰|۸۵|۵۰۰|۹۰/۱۲/۲۹|۲|۱۵|۲,۲۰۰,۰۰۰",
    "پالایش نفت بندرعباس|۲,۳۳۵|۹۰/۰۸/۱۸|۴۴۶|۳۲|۶|۹۰/۰۶/۳۱|۵.۲|۸۰|۳۵۰|۹۰/۱۲/۲۹|۳|۱۵|۳,۸۰۰,۰۰۰",
    "پالایش نفت تبریز|۶,۵۳۳|۹۰/۰۸/۱۸|۱,۰۵۰|۲۷|۶|۹۰/۰۶/۳۱|۶.۲|۸۰|۸۰۰|۹۰/۱۲/۲۹|۲|۱۵|۹۰۰,۰۰۰",
    "پتروشیمی آبادان|۲,۶۰۰|۹۰/۰۸/۱۴|۳۰۵|||۹۰/۰۶/۳۱|۸.۵|۸۰|۲۵۰|۹۰/۱۲/۲۹|۱۶|۱۵|۷۰۰,۰۰۰",
    "پتروشیمی اراک|۹,۰۲۵|۹۰/۰۸/۱۸|۱,۹۳۰|۳۸|۶|۹۰/۰۶/۳۱|۴.۷|۹۰|۱,۷۰۰|۹۰/۱۲/۲۹|۲|۲۰|۴,۶۲۴,۰۰۰",
    "پتروشیمی پردیس|۸,۱۷۰|۹۰/۰۸/۱۸|۲,۴۴۸|۴۰|۶|۹۰/۰۶/۳۱|۳.۳|۹۰|۲,۲۰۰|۹۰/۱۲/۲۹|۱|۱۵|۳,۰۰۰,۰۰۰",
    "پتروشیمی خارک|۱۲,۷۷۳|۹۰/۰۸/۱۸|۳,۱۳۰|۴۱|۶|۹۰/۰۶/۳۱|۴.۱|۹۰|۲,۶۰۰|۹۰/۱۲/۲۹|۱|۱۵|۶۰۰,۰۰۰",
    "پتروشیمی خراسان|۸,۴۷۶|۹۰/۰۸/۱۸|۱,۸۰۷|||۹۰/۰۶/۳۱|۴.۷|۸۰|۱,۵۰۰|۹۰/۱۲/۲۹|۳|۲۰|۱,۵۰۰,۰۰۰",
    "پتروشیمی زاگرس|۱۰,۰۰۰|۹۰/۰۸/۱۸|۲,۲۲۰|۳۰|۶|۹۰/۰۶/۳۱|۴.۵|۸۵|۱,۸۰۰|۹۰/۱۲/۲۹|۲|۱۵|۲,۰۰۰,۰۰۰",
    "پتروشیمی شازند|۲,۷۲۲|۹۰/۰۸/۱۸|۳۲۸|||۹۰/۰۶/۳۱|۸.۳|۸۰|۲۵۰|۹۰/۱۲/۲۹|۷|۱۵|۱۰,۰۰۰,۰۰۰",
    "پتروشیمی فن‌آوران|۹,۵۶۰|۹۰/۰۸/۱۸|۲,۱۳۶|۳۵|۶|۹۰/۰۶/۳۱|۴.۵|۹۰|۱,۹۰۰|۹۰/۱۲/۲۹|۳|۱۵|۴۸۰,۰۰۰",
    "پتروشیمی شیراز|۳,۸۳۱|۹۰/۰۸/۱۴|۵۶۲|||۹۰/۰۶/۳۱|۶.۸|۸۰|۴۵۰|۹۰/۱۲/۲۹|۱۲|۱۵|۱,۷۰۰,۰۰۰",
    "پتروشیمی مارون|۱۰,۰۱۲|۹۰/۰۸/۱۸|۲,۰۰۳|۳۸|۶|۹۰/۰۶/۳۱|۵.۰|۹۰|۱,۸۰۰|۹۰/۱۲/۲۹|۲|۱۵|۳,۰۰۰,۰۰۰",
    "پلاسکوکار سایپا|۲,۷۸۸|۹۰/۰۸/۰۸|۱۹۹|||۹۰/۰۶/۳۱|۱۴.۰|۵۰|۱۲۰|۹۰/۱۲/۲۹|۲۵|۲۰|۳۶,۰۰۰",
    "پلی‌اکریل ایران|۱,۵۳۰|۹۰/۰۸/۱۰|۸۲|||۹۰/۰۶/۳۱|۱۸.۷|۵۰|۵۰|۹۰/۱۲/۲۹|۲۰|۲۰|۸۸۰,۰۰۰",
    "پمپ‌سازی ایران|۳,۸۸۷|۹۰/۰۸/۰۴|۳۹۸|||۹۰/۰۶/۳۱|۹.۸|۸۰|۳۰۰|۹۰/۱۲/۲۹|۴۰|۲۰|۳۶,۰۰۰",
    "تامین ماسه ریخته‌گری|۲,۸۳۰|۹۰/۰۸/۰۸|۳۱۰|||۹۰/۰۶/۳۱|۹.۱|۹۰|۲۸۰|۹۰/۱۲/۲۹|۶۰|۲۰|۱۶,۰۰۰",
    "تایدواتر خاورمیانه|۲,۷۸۰|۹۰/۰۸/۱۷|۶۰۵|||۹۰/۰۶/۳۱|۴.۶|۸۰|۴۵۰|۹۰/۱۲/۲۹|۲|۱۵|۱,۵۰۰,۰۰۰",
    "تراکتورسازی ایران|۱,۷۵۰|۹۰/۰۸/۱۱|۱۸۵|||۹۰/۰۶/۳۱|۹.۵|۶۰|۱۳۰|۹۰/۱۲/۲۹|۲۰|۲۰|۱,۶۰۰,۰۰۰",
    "تولید مواد اولیه داروپخش|۷,۴۷۰|۹۰/۰۸/۱۸|۱,۰۸۰|||۹۰/۰۶/۳۱|۶.۹|۸۵|۹۰۰|۹۰/۱۲/۲۹|۱۵|۲۰|۱۵۰,۰۰۰",
    "توسعه معادن روی ایران|۳,۳۱۵|۹۰/۰۸/۱۸|۶۱۳|||۹۰/۰۶/۳۱|۵.۴|۸۰|۵۰۰|۹۰/۱۲/۲۹|۳|۲۰|۷۰۲,۰۰۰",
    "توسعه صنایع بهشهر|۲,۱۸۷|۹۰/۰۸/۱۸|۳۶۷|||۹۰/۰۶/۳۱|۶.۰|۸۰|۳۰۰|۹۰/۱۲/۲۹|۱|۲۰|۲,۹۰۰,۰۰۰",
    "تولیدی ایران تایر|۳,۵۱۱|۹۰/۰۸/۰۹|۴۶۰|||۹۰/۰۶/۳۱|۷.۶|۸۰|۳۰۰|۹۰/۱۲/۲۹|۲۸|۲۰|۲۰۲,۵۰۰",
    "تولیدی بهمن|۲,۸۸۰|۹۰/۰۸/۱۵|۱۲۲|||۹۰/۰۶/۳۱|۲۳.۶|۵۰|۱۰۰|۹۰/۱۲/۲۹|۸|۲۵|۴۰۰,۰۰۰",
    "تولیدی پلاستیک شاهین|۵,۱۸۰|۹۰/۰۸/۰۸|۴۴۸|||۹۰/۰۶/۳۱|۱۱.۶|۷۰|۴۰۰|۹۰/۱۲/۲۹|۳۰|۲۵|۲۰,۰۰۰",
    "تولیدی توسن|۱,۶۷۹|۹۰/۰۸/۱۴|۹۲|||۹۰/۰۶/۳۱|۱۸.۳|۵۰|۶۰|۹۰/۱۲/۲۹|۴۰|۲۰|۱۰۰,۰۰۰",
    "تولیدی چدن‌سازان|۴,۹۰۹|۹۰/۰۸/۰۲|۴۷۲|||۹۰/۰۶/۳۱|۱۰.۴|۷۰|۳۵۰|۹۰/۱۲/۲۹|۵۰|۲۰|۶۰,۰۰۰",
    "تولیدی مهرام|۱۰,۰۸۰|۹۰/۰۸/۰۸|۱,۲۱۰|||۹۰/۰۶/۳۱|۸.۳|۸۰|۱,۰۰۰|۹۰/۱۲/۲۹|۱۴۵|۱۵|۲۰,۰۰۰",
    "جام دارو|۴,۲۷۶|۹۰/۰۸/۰۳|۷۰۰|||۹۰/۰۶/۳۱|۶.۱|۹۰|۵۵۰|۹۰/۱۲/۲۹|۱۰|۲۰|۳۰,۰۰۰",
    "جوشکاب یزد|۳,۹۵۸|۹۰/۰۸/۱۰|۲۲۰|||۹۰/۰۶/۳۱|۱۸.۰|۵۰|۱۵۰|۹۰/۱۲/۲۹|۳۵|۳۰|۳۰,۰۰۰",
    "چرخشگر|۳,۰۱۳|۹۰/۰۸/۱۴|۲۸۰|||۹۰/۰۶/۳۱|۱۰.۸|۶۰|۲۰۰|۹۰/۱۲/۲۹|۵۵|۲۰|۴۹,۵۰۰",
    "حفاری شمال|۳,۳۷۰|۹۰/۰۸/۱۸|۶۱۵|||۹۰/۰۶/۳۱|۵.۵|۸۰|۵۰۰|۹۰/۱۲/۲۹|۳|۱۵|۱,۰۰۰,۰۰۰",
    "حمل و نقل توکا|۲,۷۵۰|۹۰/۰۸/۰۷|۳۰۲|||۹۰/۰۶/۳۱|۹.۱|۸۵|۲۵۰|۹۰/۱۲/۲۹|۲۲|۳۵|۳۰۰,۰۰۰",
    "خدمات انفورماتیک|۷,۸۸۹|۹۰/۰۸/۰۲|۸۶۸|||۹۰/۰۶/۳۱|۹.۱|۸۰|۶۰۰|۹۰/۱۲/۲۹|۲۳|۲۵|۱۸۰,۰۰۰",
    "خاک چینی ایران|۶,۱۰۷|۹۰/۰۸/۱۵|۸۹۱|||۹۰/۰۶/۳۱|۶.۹|۸۰|۷۰۰|۹۰/۱۲/۲۹|۲۵|۲۰|۴۸,۰۰۰",
    "خوراک دام پارس|۲,۰۳۸|۹۰/۰۸/۱۱|۱۹۸|||۹۰/۰۶/۳۱|۱۰.۳|۷۰|۱۵۰|۹۰/۱۲/۲۹|۱۹|۲۰|۵۰,۰۰۰",
    "داروسازی ابوریحان|۷,۸۰۷|۹۰/۰۸/۱۶|۸۸۴|||۹۰/۰۶/۳۱|۸.۸|۸۵|۸۰۰|۹۰/۱۲/۲۹|۲۲|۲۰|۱۰۰,۰۰۰",
    "داروسازی اکسیر|۸,۰۰۰|۹۰/۰۸/۰۸|۹۹۰|||۹۰/۰۶/۳۱|۸.۱|۸۵|۸۰۰|۹۰/۱۲/۲۹|۶۸|۱۵|۵۵,۰۰۰",
    "داروسازی الحاوی|۱۱,۰۹۰|۹۰/۰۸/۱۵|۱,۱۵۰|||۹۰/۰۶/۳۱|۹.۶|۸۰|۱,۰۰۰|۹۰/۱۲/۲۹|۴۲|۱۵|۲۵,۰۰۰",
    "داروسازی امین|۶,۳۹۰|۹۰/۰۸/۱۰|۷۸۲|||۹۰/۰۶/۳۱|۸.۲|۸۰|۶۵۰|۹۰/۱۲/۲۹|۲۱|۲۰|۱۰۰,۰۰۰",
    "داروسازی جابر ابن حیان|۵,۴۴۶|۹۰/۰۸/۰۹|۵۹۸|||۹۰/۰۶/۳۱|۹.۱|۸۰|۵۰۰|۹۰/۱۲/۲۹|۵۷|۲۰|۲۵,۰۰۰",
    "داروسازی زهراوی|۶,۷۷۹|۹۰/۰۸/۱۴|۷۶۰|||۹۰/۰۶/۳۱|۸.۹|۸۰|۷۰۰|۹۰/۱۲/۲۹|۱۸|۲۰|۱۸۰,۰۰۰",
    "داروسازی سینا|۹,۰۵۰|۹۰/۰۸/۰۸|۱,۰۱۸|||۹۰/۰۶/۳۱|۸.۹|۸۵|۸۵۰|۹۰/۱۲/۲۹|۲۰|۲۰|۴۵,۰۰۰",
    "داروسازی فارابی|۸,۷۷۷|۹۰/۰۸/۱۱|۹۱۰|||۹۰/۰۶/۳۱|۹.۶|۸۰|۷۵۰|۹۰/۱۲/۲۹|۱۶|۱۵|۱۸۰,۰۰۰",
    "داروسازی کوثر|۳,۸۹۱|۹۰/۰۸/۰۷|۴۷۵|||۹۰/۰۶/۳۱|۸.۲|۸۰|۴۰۰|۹۰/۱۲/۲۹|۲۳|۱۵|۸۰,۰۰۰",
    "داروپخش|۶,۶۵۵|۹۰/۰۸/۱۸|۸۳۰|||۹۰/۰۶/۳۱|۸.۰|۸۵|۷۰۰|۹۰/۱۲/۲۹|۵|۲۰|۳۶۰,۰۰۰",
    "دارویی رازک|۹,۰۰۰|۹۰/۰۸/۰۸|۹۷۲|||۹۰/۰۶/۳۱|۹.۳|۸۵|۸۰۰|۹۰/۱۲/۲۹|۳۷|۱۵|۱۶,۰۰۰",
    "دارویی لقمان|۲,۶۳۱|۹۰/۰۸/۱۱|۲۲۸|||۹۰/۰۶/۳۱|۱۱.۵|۶۰|۲۰۰|۹۰/۱۲/۲۹|۳۹|۲۰|۴۰,۰۰۰",
    "دوده صنعتی پارس|۳,۳۶۷|۹۰/۰۸/۰۲|۳۲۰|||۹۰/۰۶/۳۱|۱۰.۵|۷۰|۲۵۰|۹۰/۱۲/۲۹|۶۶|۲۰|۱۸,۰۰۰",
    "رادیاتور ایران|۲,۸۵۰|۹۰/۰۸/۱۰|۱۸۶|||۹۰/۰۶/۳۱|۱۵.۳|۵۰|۱۵۰|۹۰/۱۲/۲۹|۲۸|۲۰|۸۰,۰۰۰",
    "ریخته‌گری تراکتورسازی|۲,۳۹۸|۹۰/۰۸/۱۵|۲۲۰|||۹۰/۰۶/۳۱|۱۰.۹|۶۰|۱۵۰|۹۰/۱۲/۲۹|۵۵|۲۰|۱۳۰,۰۰۰",
    "زامیاد|۱,۰۰۰|۹۰/۰۸/۱۴|۳۲|||۹۰/۰۶/۳۱|۳۱.۳|||۹۰/۱۲/۲۹|۲۵|۲۵|۵۵۰,۰۰۰",
    "ساختمان اصفهان|۱,۷۳۰|۹۰/۰۸/۰۸|۱۸۰|||۹۰/۰۶/۳۱|۹.۶|۶۰|۱۲۰|۹۰/۱۲/۲۹|۴۰|۷۰|۲۰,۰۰۰",
    "سایپا آذین|۱,۲۵۸|۹۰/۰۸/۱۸|۸۵|||۹۰/۰۶/۳۱|۱۴.۸|۵۰|۵۰|۹۰/۱۲/۲۹|۱۵|۲۰|۲۹۰,۰۰۰"
  ]
}
